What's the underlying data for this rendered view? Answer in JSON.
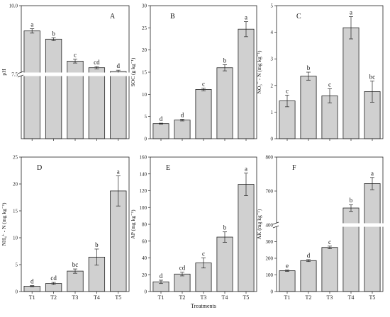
{
  "chart_data": [
    {
      "type": "bar",
      "panel": "A",
      "ylabel": "pH",
      "xlabel": "",
      "categories": [
        "",
        "",
        "",
        "",
        ""
      ],
      "values": [
        9.08,
        8.78,
        7.98,
        7.74,
        7.6
      ],
      "errors": [
        0.08,
        0.05,
        0.07,
        0.04,
        0.05
      ],
      "letters": [
        "a",
        "b",
        "c",
        "cd",
        "d"
      ],
      "ylim": [
        0,
        10
      ],
      "axis_break": [
        1,
        7.5
      ],
      "ytick_labels": [
        "7.5",
        "10.0"
      ]
    },
    {
      "type": "bar",
      "panel": "B",
      "ylabel": "SOC (g kg⁻¹)",
      "xlabel": "",
      "categories": [
        "",
        "",
        "",
        "",
        ""
      ],
      "values": [
        3.4,
        4.2,
        11.1,
        16.0,
        24.7
      ],
      "errors": [
        0.1,
        0.2,
        0.3,
        0.7,
        1.7
      ],
      "letters": [
        "d",
        "d",
        "c",
        "b",
        "a"
      ],
      "ylim": [
        0,
        30
      ],
      "ytick_labels": [
        "0",
        "5",
        "10",
        "15",
        "20",
        "25",
        "30"
      ]
    },
    {
      "type": "bar",
      "panel": "C",
      "ylabel": "NO₃⁻ - N (mg kg⁻¹)",
      "xlabel": "",
      "categories": [
        "",
        "",
        "",
        "",
        ""
      ],
      "values": [
        1.42,
        2.35,
        1.61,
        4.17,
        1.77
      ],
      "errors": [
        0.22,
        0.15,
        0.27,
        0.42,
        0.4
      ],
      "letters": [
        "c",
        "b",
        "c",
        "a",
        "bc"
      ],
      "ylim": [
        0,
        5
      ],
      "ytick_labels": [
        "0",
        "1",
        "2",
        "3",
        "4",
        "5"
      ]
    },
    {
      "type": "bar",
      "panel": "D",
      "ylabel": "NH₄⁺ - N (mg kg⁻¹)",
      "xlabel": "",
      "categories": [
        "T1",
        "T2",
        "T3",
        "T4",
        "T5"
      ],
      "values": [
        1.0,
        1.5,
        3.8,
        6.4,
        18.7
      ],
      "errors": [
        0.1,
        0.2,
        0.4,
        1.5,
        2.8
      ],
      "letters": [
        "d",
        "cd",
        "bc",
        "b",
        "a"
      ],
      "ylim": [
        0,
        25
      ],
      "ytick_labels": [
        "0",
        "5",
        "10",
        "15",
        "20",
        "25"
      ]
    },
    {
      "type": "bar",
      "panel": "E",
      "ylabel": "AP (mg kg⁻¹)",
      "xlabel": "Treatments",
      "categories": [
        "T1",
        "T2",
        "T3",
        "T4",
        "T5"
      ],
      "values": [
        11.5,
        20.8,
        34.0,
        64.8,
        127.5
      ],
      "errors": [
        2.0,
        2.2,
        6.0,
        6.2,
        13.5
      ],
      "letters": [
        "d",
        "cd",
        "c",
        "b",
        "a"
      ],
      "ylim": [
        0,
        160
      ],
      "ytick_labels": [
        "0",
        "20",
        "40",
        "60",
        "80",
        "100",
        "120",
        "140",
        "160"
      ]
    },
    {
      "type": "bar",
      "panel": "F",
      "ylabel": "AK (mg kg⁻¹)",
      "xlabel": "",
      "categories": [
        "T1",
        "T2",
        "T3",
        "T4",
        "T5"
      ],
      "values": [
        125,
        186,
        265,
        650,
        722
      ],
      "errors": [
        4,
        6,
        8,
        10,
        18
      ],
      "letters": [
        "e",
        "d",
        "c",
        "b",
        "a"
      ],
      "ylim": [
        0,
        800
      ],
      "axis_break": [
        400,
        600
      ],
      "ytick_labels": [
        "0",
        "100",
        "200",
        "300",
        "400",
        "700",
        "800"
      ]
    }
  ]
}
